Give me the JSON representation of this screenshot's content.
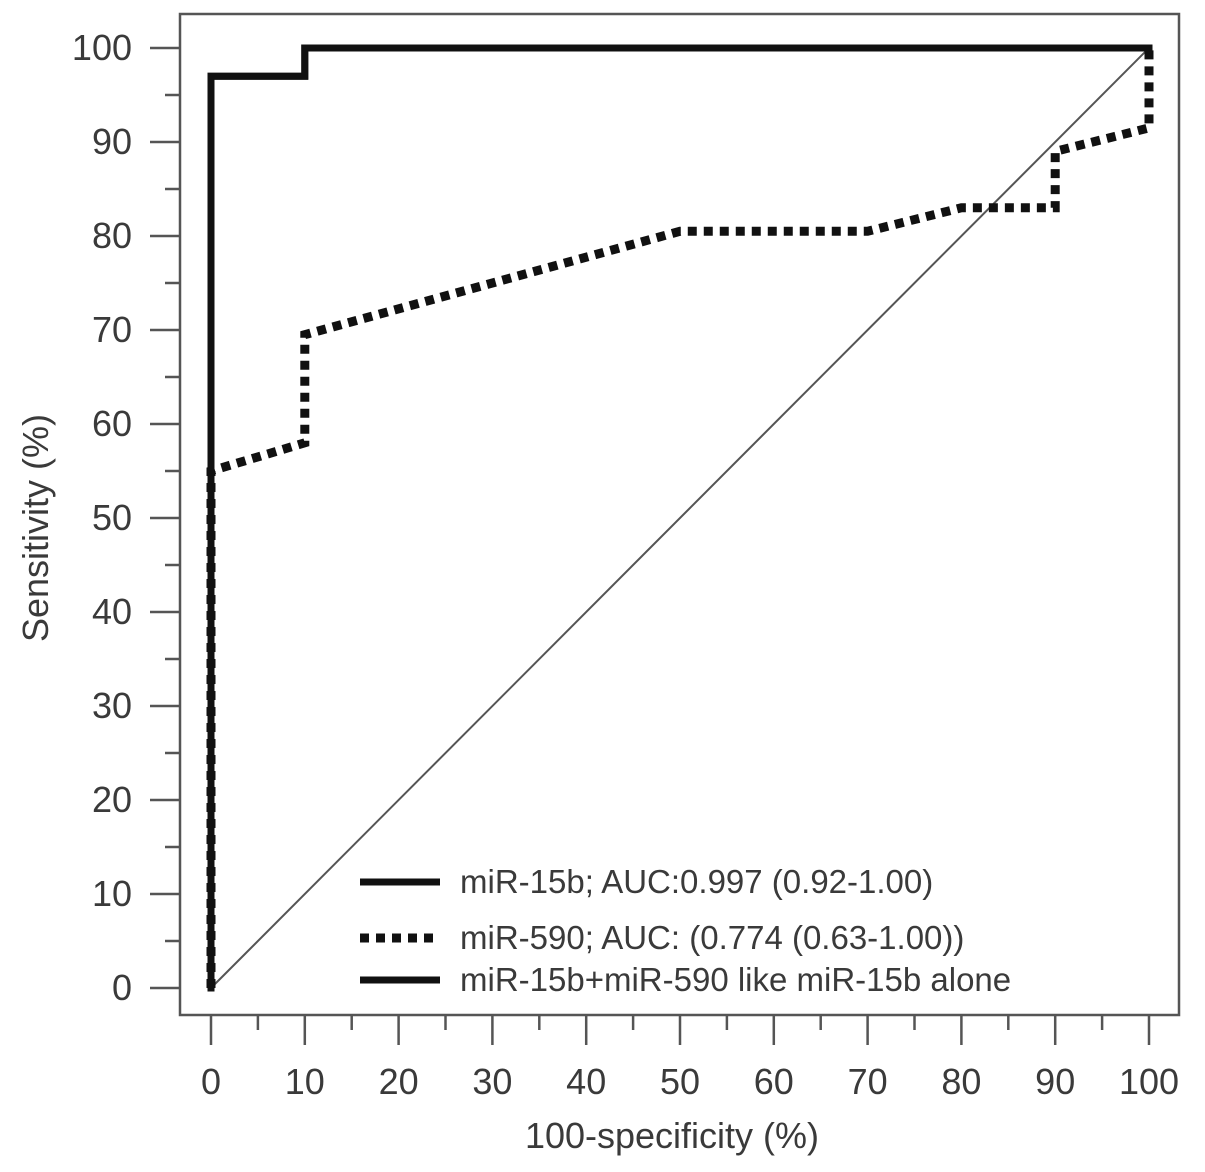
{
  "chart_data": {
    "type": "line",
    "xlabel": "100-specificity (%)",
    "ylabel": "Sensitivity (%)",
    "xlim": [
      0,
      100
    ],
    "ylim": [
      0,
      100
    ],
    "x_ticks": [
      0,
      10,
      20,
      30,
      40,
      50,
      60,
      70,
      80,
      90,
      100
    ],
    "y_ticks": [
      0,
      10,
      20,
      30,
      40,
      50,
      60,
      70,
      80,
      90,
      100
    ],
    "grid": false,
    "legend_position": "bottom-right",
    "reference_line": {
      "x": [
        0,
        100
      ],
      "y": [
        0,
        100
      ]
    },
    "series": [
      {
        "name": "miR-15b; AUC:0.997 (0.92-1.00)",
        "style": "solid",
        "color": "#111111",
        "x": [
          0,
          0,
          10,
          10,
          100,
          100
        ],
        "y": [
          0,
          97,
          97,
          100,
          100,
          100
        ]
      },
      {
        "name": "miR-590; AUC: (0.774 (0.63-1.00))",
        "style": "dotted",
        "color": "#111111",
        "x": [
          0,
          0,
          10,
          10,
          50,
          70,
          80,
          90,
          90,
          100,
          100
        ],
        "y": [
          0,
          55,
          58,
          69.5,
          80.5,
          80.5,
          83,
          83,
          89,
          91.5,
          100
        ]
      },
      {
        "name": "miR-15b+miR-590 like miR-15b alone",
        "style": "solid",
        "color": "#111111",
        "x": [
          0,
          0,
          10,
          10,
          100
        ],
        "y": [
          0,
          97,
          97,
          100,
          100
        ]
      }
    ]
  }
}
